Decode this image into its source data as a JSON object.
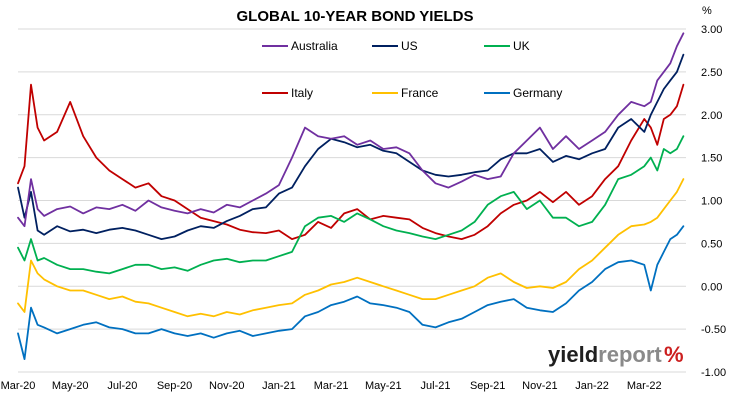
{
  "chart_data": {
    "type": "line",
    "title": "GLOBAL 10-YEAR BOND YIELDS",
    "y_unit": "%",
    "ylim": [
      -1.0,
      3.0
    ],
    "y_ticks": [
      "3.00",
      "2.50",
      "2.00",
      "1.50",
      "1.00",
      "0.50",
      "0.00",
      "-0.50",
      "-1.00"
    ],
    "x_ticks": [
      "Mar-20",
      "May-20",
      "Jul-20",
      "Sep-20",
      "Nov-20",
      "Jan-21",
      "Mar-21",
      "May-21",
      "Jul-21",
      "Sep-21",
      "Nov-21",
      "Jan-22",
      "Mar-22"
    ],
    "xlim": [
      0,
      25.6
    ],
    "grid": true,
    "legend_position": "top-center",
    "x": [
      0,
      0.25,
      0.5,
      0.75,
      1,
      1.5,
      2,
      2.5,
      3,
      3.5,
      4,
      4.5,
      5,
      5.5,
      6,
      6.5,
      7,
      7.5,
      8,
      8.5,
      9,
      9.5,
      10,
      10.5,
      11,
      11.5,
      12,
      12.5,
      13,
      13.5,
      14,
      14.5,
      15,
      15.5,
      16,
      16.5,
      17,
      17.5,
      18,
      18.5,
      19,
      19.5,
      20,
      20.5,
      21,
      21.5,
      22,
      22.5,
      23,
      23.5,
      24,
      24.25,
      24.5,
      24.75,
      25,
      25.25,
      25.5
    ],
    "series": [
      {
        "name": "Australia",
        "color": "#7030A0",
        "values": [
          0.8,
          0.7,
          1.25,
          0.9,
          0.82,
          0.9,
          0.93,
          0.85,
          0.92,
          0.9,
          0.95,
          0.88,
          1.0,
          0.92,
          0.88,
          0.85,
          0.9,
          0.86,
          0.95,
          0.92,
          1.0,
          1.08,
          1.18,
          1.5,
          1.85,
          1.75,
          1.72,
          1.75,
          1.65,
          1.7,
          1.6,
          1.62,
          1.55,
          1.35,
          1.2,
          1.15,
          1.22,
          1.3,
          1.25,
          1.28,
          1.55,
          1.7,
          1.85,
          1.6,
          1.75,
          1.6,
          1.7,
          1.8,
          2.0,
          2.15,
          2.1,
          2.15,
          2.4,
          2.5,
          2.6,
          2.8,
          2.95
        ]
      },
      {
        "name": "US",
        "color": "#002060",
        "values": [
          1.15,
          0.8,
          1.1,
          0.65,
          0.6,
          0.7,
          0.64,
          0.66,
          0.62,
          0.66,
          0.68,
          0.65,
          0.6,
          0.55,
          0.58,
          0.65,
          0.7,
          0.68,
          0.76,
          0.82,
          0.9,
          0.92,
          1.08,
          1.15,
          1.4,
          1.6,
          1.72,
          1.68,
          1.62,
          1.65,
          1.58,
          1.55,
          1.45,
          1.35,
          1.3,
          1.28,
          1.3,
          1.33,
          1.35,
          1.48,
          1.55,
          1.55,
          1.6,
          1.45,
          1.52,
          1.48,
          1.55,
          1.6,
          1.85,
          1.95,
          1.8,
          2.0,
          2.15,
          2.3,
          2.4,
          2.5,
          2.7
        ]
      },
      {
        "name": "UK",
        "color": "#00B050",
        "values": [
          0.45,
          0.3,
          0.55,
          0.3,
          0.33,
          0.25,
          0.2,
          0.2,
          0.17,
          0.15,
          0.2,
          0.25,
          0.25,
          0.2,
          0.22,
          0.18,
          0.25,
          0.3,
          0.32,
          0.28,
          0.3,
          0.3,
          0.35,
          0.4,
          0.7,
          0.8,
          0.82,
          0.75,
          0.85,
          0.78,
          0.7,
          0.65,
          0.62,
          0.58,
          0.55,
          0.6,
          0.65,
          0.75,
          0.95,
          1.05,
          1.1,
          0.9,
          1.0,
          0.8,
          0.8,
          0.7,
          0.75,
          0.95,
          1.25,
          1.3,
          1.4,
          1.5,
          1.35,
          1.6,
          1.55,
          1.6,
          1.75
        ]
      },
      {
        "name": "Italy",
        "color": "#C00000",
        "values": [
          1.2,
          1.4,
          2.35,
          1.85,
          1.7,
          1.8,
          2.15,
          1.75,
          1.5,
          1.35,
          1.25,
          1.15,
          1.2,
          1.05,
          1.0,
          0.9,
          0.8,
          0.76,
          0.72,
          0.66,
          0.63,
          0.62,
          0.65,
          0.55,
          0.6,
          0.75,
          0.68,
          0.85,
          0.9,
          0.78,
          0.82,
          0.8,
          0.78,
          0.68,
          0.62,
          0.58,
          0.55,
          0.6,
          0.7,
          0.85,
          0.95,
          1.0,
          1.1,
          0.98,
          1.1,
          0.95,
          1.05,
          1.25,
          1.4,
          1.7,
          1.95,
          1.85,
          1.65,
          1.95,
          2.0,
          2.1,
          2.35
        ]
      },
      {
        "name": "France",
        "color": "#FFC000",
        "values": [
          -0.2,
          -0.3,
          0.3,
          0.15,
          0.08,
          0.0,
          -0.05,
          -0.05,
          -0.1,
          -0.15,
          -0.12,
          -0.18,
          -0.2,
          -0.25,
          -0.3,
          -0.35,
          -0.32,
          -0.35,
          -0.3,
          -0.33,
          -0.28,
          -0.25,
          -0.22,
          -0.2,
          -0.1,
          -0.05,
          0.02,
          0.05,
          0.1,
          0.05,
          0.0,
          -0.05,
          -0.1,
          -0.15,
          -0.15,
          -0.1,
          -0.05,
          0.0,
          0.1,
          0.15,
          0.05,
          -0.02,
          0.0,
          -0.02,
          0.05,
          0.2,
          0.3,
          0.45,
          0.6,
          0.7,
          0.72,
          0.75,
          0.8,
          0.9,
          1.0,
          1.1,
          1.25
        ]
      },
      {
        "name": "Germany",
        "color": "#0070C0",
        "values": [
          -0.55,
          -0.85,
          -0.25,
          -0.45,
          -0.48,
          -0.55,
          -0.5,
          -0.45,
          -0.42,
          -0.48,
          -0.5,
          -0.55,
          -0.55,
          -0.5,
          -0.55,
          -0.58,
          -0.55,
          -0.6,
          -0.55,
          -0.52,
          -0.58,
          -0.55,
          -0.52,
          -0.5,
          -0.35,
          -0.3,
          -0.22,
          -0.18,
          -0.12,
          -0.2,
          -0.22,
          -0.25,
          -0.3,
          -0.45,
          -0.48,
          -0.42,
          -0.38,
          -0.3,
          -0.22,
          -0.18,
          -0.15,
          -0.25,
          -0.28,
          -0.3,
          -0.2,
          -0.05,
          0.05,
          0.2,
          0.28,
          0.3,
          0.25,
          -0.05,
          0.25,
          0.4,
          0.55,
          0.6,
          0.7
        ]
      }
    ]
  },
  "watermark": {
    "part1": "yield",
    "part2": "report",
    "part3": "%"
  }
}
